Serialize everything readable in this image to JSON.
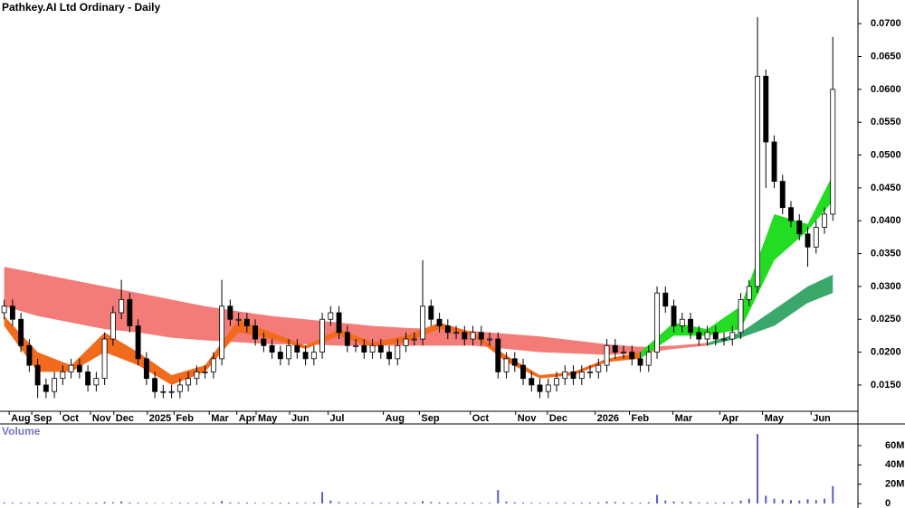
{
  "chart_data": {
    "type": "candlestick",
    "title": "Pathkey.AI Ltd Ordinary - Daily",
    "volume_label": "Volume",
    "xlim": [
      -0.5,
      102
    ],
    "ylim": [
      0.011,
      0.0736
    ],
    "yticks": [
      {
        "value": 0.015,
        "label": "0.0150"
      },
      {
        "value": 0.02,
        "label": "0.0200"
      },
      {
        "value": 0.025,
        "label": "0.0250"
      },
      {
        "value": 0.03,
        "label": "0.0300"
      },
      {
        "value": 0.035,
        "label": "0.0350"
      },
      {
        "value": 0.04,
        "label": "0.0400"
      },
      {
        "value": 0.045,
        "label": "0.0450"
      },
      {
        "value": 0.05,
        "label": "0.0500"
      },
      {
        "value": 0.055,
        "label": "0.0550"
      },
      {
        "value": 0.06,
        "label": "0.0600"
      },
      {
        "value": 0.065,
        "label": "0.0650"
      },
      {
        "value": 0.07,
        "label": "0.0700"
      }
    ],
    "xticks": [
      {
        "value": 0.6,
        "label": "Aug"
      },
      {
        "value": 3.3,
        "label": "Sep"
      },
      {
        "value": 6.7,
        "label": "Oct"
      },
      {
        "value": 10.3,
        "label": "Nov"
      },
      {
        "value": 13.1,
        "label": "Dec"
      },
      {
        "value": 17.1,
        "label": "2025"
      },
      {
        "value": 20.3,
        "label": "Feb"
      },
      {
        "value": 24.5,
        "label": "Mar"
      },
      {
        "value": 27.8,
        "label": "Apr"
      },
      {
        "value": 30.1,
        "label": "May"
      },
      {
        "value": 34.1,
        "label": "Jun"
      },
      {
        "value": 38.7,
        "label": "Jul"
      },
      {
        "value": 45.3,
        "label": "Aug"
      },
      {
        "value": 49.6,
        "label": "Sep"
      },
      {
        "value": 55.7,
        "label": "Oct"
      },
      {
        "value": 61.1,
        "label": "Nov"
      },
      {
        "value": 64.9,
        "label": "Dec"
      },
      {
        "value": 70.6,
        "label": "2026"
      },
      {
        "value": 74.7,
        "label": "Feb"
      },
      {
        "value": 79.9,
        "label": "Mar"
      },
      {
        "value": 85.5,
        "label": "Apr"
      },
      {
        "value": 90.6,
        "label": "May"
      },
      {
        "value": 96.4,
        "label": "Jun"
      }
    ],
    "x": [
      0,
      1,
      2,
      3,
      4,
      5,
      6,
      7,
      8,
      9,
      10,
      11,
      12,
      13,
      14,
      15,
      16,
      17,
      18,
      19,
      20,
      21,
      22,
      23,
      24,
      25,
      26,
      27,
      28,
      29,
      30,
      31,
      32,
      33,
      34,
      35,
      36,
      37,
      38,
      39,
      40,
      41,
      42,
      43,
      44,
      45,
      46,
      47,
      48,
      49,
      50,
      51,
      52,
      53,
      54,
      55,
      56,
      57,
      58,
      59,
      60,
      61,
      62,
      63,
      64,
      65,
      66,
      67,
      68,
      69,
      70,
      71,
      72,
      73,
      74,
      75,
      76,
      77,
      78,
      79,
      80,
      81,
      82,
      83,
      84,
      85,
      86,
      87,
      88,
      89,
      90,
      91,
      92,
      93,
      94,
      95,
      96,
      97,
      98,
      99
    ],
    "open": [
      0.026,
      0.027,
      0.025,
      0.021,
      0.018,
      0.015,
      0.014,
      0.016,
      0.017,
      0.018,
      0.017,
      0.015,
      0.016,
      0.022,
      0.026,
      0.028,
      0.024,
      0.019,
      0.016,
      0.014,
      0.014,
      0.014,
      0.015,
      0.016,
      0.017,
      0.017,
      0.019,
      0.027,
      0.025,
      0.025,
      0.024,
      0.022,
      0.021,
      0.02,
      0.019,
      0.021,
      0.02,
      0.019,
      0.02,
      0.025,
      0.026,
      0.023,
      0.021,
      0.021,
      0.02,
      0.021,
      0.02,
      0.019,
      0.021,
      0.022,
      0.022,
      0.027,
      0.025,
      0.024,
      0.023,
      0.023,
      0.022,
      0.023,
      0.022,
      0.022,
      0.017,
      0.019,
      0.018,
      0.016,
      0.015,
      0.014,
      0.015,
      0.016,
      0.017,
      0.016,
      0.017,
      0.017,
      0.018,
      0.021,
      0.02,
      0.02,
      0.019,
      0.018,
      0.02,
      0.029,
      0.027,
      0.024,
      0.025,
      0.023,
      0.022,
      0.023,
      0.022,
      0.022,
      0.023,
      0.028,
      0.03,
      0.062,
      0.052,
      0.046,
      0.042,
      0.04,
      0.038,
      0.036,
      0.039,
      0.041
    ],
    "high": [
      0.028,
      0.028,
      0.026,
      0.022,
      0.019,
      0.016,
      0.017,
      0.018,
      0.019,
      0.019,
      0.018,
      0.017,
      0.023,
      0.027,
      0.031,
      0.029,
      0.025,
      0.02,
      0.017,
      0.015,
      0.015,
      0.016,
      0.017,
      0.018,
      0.018,
      0.02,
      0.031,
      0.028,
      0.026,
      0.026,
      0.025,
      0.023,
      0.022,
      0.021,
      0.022,
      0.022,
      0.021,
      0.021,
      0.026,
      0.027,
      0.027,
      0.024,
      0.022,
      0.022,
      0.022,
      0.022,
      0.021,
      0.022,
      0.023,
      0.023,
      0.034,
      0.028,
      0.026,
      0.025,
      0.024,
      0.024,
      0.024,
      0.024,
      0.023,
      0.023,
      0.02,
      0.02,
      0.019,
      0.017,
      0.016,
      0.016,
      0.017,
      0.018,
      0.018,
      0.018,
      0.018,
      0.019,
      0.022,
      0.022,
      0.021,
      0.021,
      0.02,
      0.021,
      0.03,
      0.03,
      0.028,
      0.026,
      0.026,
      0.024,
      0.024,
      0.024,
      0.023,
      0.024,
      0.029,
      0.031,
      0.071,
      0.063,
      0.053,
      0.047,
      0.043,
      0.041,
      0.039,
      0.04,
      0.042,
      0.068
    ],
    "low": [
      0.025,
      0.024,
      0.02,
      0.017,
      0.013,
      0.013,
      0.013,
      0.015,
      0.016,
      0.016,
      0.014,
      0.014,
      0.015,
      0.021,
      0.025,
      0.023,
      0.018,
      0.015,
      0.013,
      0.013,
      0.013,
      0.013,
      0.014,
      0.015,
      0.016,
      0.016,
      0.018,
      0.024,
      0.024,
      0.023,
      0.021,
      0.02,
      0.019,
      0.018,
      0.018,
      0.019,
      0.018,
      0.018,
      0.019,
      0.024,
      0.022,
      0.02,
      0.02,
      0.019,
      0.019,
      0.019,
      0.018,
      0.018,
      0.02,
      0.021,
      0.021,
      0.024,
      0.023,
      0.022,
      0.022,
      0.021,
      0.021,
      0.021,
      0.021,
      0.016,
      0.016,
      0.017,
      0.015,
      0.014,
      0.013,
      0.013,
      0.014,
      0.015,
      0.015,
      0.015,
      0.016,
      0.016,
      0.017,
      0.019,
      0.019,
      0.018,
      0.017,
      0.017,
      0.019,
      0.026,
      0.023,
      0.023,
      0.022,
      0.021,
      0.021,
      0.021,
      0.021,
      0.021,
      0.022,
      0.027,
      0.029,
      0.045,
      0.045,
      0.041,
      0.039,
      0.037,
      0.033,
      0.035,
      0.038,
      0.04
    ],
    "close": [
      0.027,
      0.025,
      0.021,
      0.018,
      0.015,
      0.014,
      0.016,
      0.017,
      0.018,
      0.017,
      0.015,
      0.016,
      0.022,
      0.026,
      0.028,
      0.024,
      0.019,
      0.016,
      0.014,
      0.014,
      0.014,
      0.015,
      0.016,
      0.017,
      0.017,
      0.019,
      0.027,
      0.025,
      0.025,
      0.024,
      0.022,
      0.021,
      0.02,
      0.019,
      0.021,
      0.02,
      0.019,
      0.02,
      0.025,
      0.026,
      0.023,
      0.021,
      0.021,
      0.02,
      0.021,
      0.02,
      0.019,
      0.021,
      0.022,
      0.022,
      0.027,
      0.025,
      0.024,
      0.023,
      0.023,
      0.022,
      0.023,
      0.022,
      0.022,
      0.017,
      0.019,
      0.018,
      0.016,
      0.015,
      0.014,
      0.015,
      0.016,
      0.017,
      0.016,
      0.017,
      0.017,
      0.018,
      0.021,
      0.02,
      0.02,
      0.019,
      0.018,
      0.02,
      0.029,
      0.027,
      0.024,
      0.025,
      0.023,
      0.022,
      0.023,
      0.022,
      0.022,
      0.023,
      0.028,
      0.03,
      0.062,
      0.052,
      0.046,
      0.042,
      0.04,
      0.038,
      0.036,
      0.039,
      0.041,
      0.06
    ],
    "up_color": "#ffffff",
    "down_color": "#000000",
    "volume": [
      1200000,
      1000000,
      900000,
      800000,
      1100000,
      700000,
      900000,
      800000,
      1000000,
      700000,
      800000,
      900000,
      1500000,
      1300000,
      2000000,
      1100000,
      900000,
      700000,
      600000,
      500000,
      600000,
      800000,
      700000,
      900000,
      800000,
      1000000,
      2500000,
      1200000,
      900000,
      1000000,
      800000,
      700000,
      900000,
      800000,
      1000000,
      900000,
      800000,
      1100000,
      12000000,
      3000000,
      1500000,
      1000000,
      900000,
      800000,
      1000000,
      900000,
      800000,
      1100000,
      1200000,
      1000000,
      2500000,
      1500000,
      1200000,
      1000000,
      900000,
      800000,
      1000000,
      900000,
      800000,
      14000000,
      2000000,
      1200000,
      1000000,
      900000,
      800000,
      900000,
      1000000,
      1100000,
      900000,
      1000000,
      900000,
      1200000,
      2000000,
      1500000,
      1200000,
      1000000,
      900000,
      1300000,
      9000000,
      3000000,
      2000000,
      1500000,
      1800000,
      1200000,
      1100000,
      1000000,
      1200000,
      1400000,
      3000000,
      5000000,
      72000000,
      8000000,
      5000000,
      4000000,
      3500000,
      3000000,
      4500000,
      3500000,
      5000000,
      18000000
    ],
    "volume_color": "#5c5cc8",
    "vylim": [
      0,
      75000000
    ],
    "vyticks": [
      0,
      {
        "value": 20000000,
        "label": "20M"
      },
      {
        "value": 40000000,
        "label": "40M"
      },
      {
        "value": 60000000,
        "label": "60M"
      }
    ],
    "bands": [
      {
        "color": "#f47c78",
        "x": [
          0,
          4,
          8,
          12,
          16,
          20,
          24,
          28,
          32,
          36,
          40,
          44,
          48,
          52,
          56,
          60,
          64,
          68,
          72,
          76,
          80,
          84
        ],
        "upper": [
          0.033,
          0.032,
          0.031,
          0.03,
          0.029,
          0.028,
          0.027,
          0.0262,
          0.0255,
          0.025,
          0.0245,
          0.024,
          0.0237,
          0.0235,
          0.0232,
          0.0228,
          0.0224,
          0.0218,
          0.0212,
          0.0208,
          0.021,
          0.0214
        ],
        "lower": [
          0.027,
          0.0255,
          0.0245,
          0.0235,
          0.023,
          0.0222,
          0.0218,
          0.0215,
          0.0212,
          0.0212,
          0.021,
          0.021,
          0.021,
          0.021,
          0.021,
          0.0205,
          0.02,
          0.0198,
          0.0196,
          0.0198,
          0.0205,
          0.021
        ]
      },
      {
        "color": "#3aa86b",
        "x": [
          84,
          88,
          92,
          96,
          99
        ],
        "upper": [
          0.0214,
          0.023,
          0.0265,
          0.03,
          0.0318
        ],
        "lower": [
          0.021,
          0.0222,
          0.024,
          0.0275,
          0.029
        ]
      },
      {
        "color": "#f26b1d",
        "x": [
          0,
          4,
          8,
          12,
          16,
          20,
          24,
          28,
          32,
          36,
          40,
          44,
          48,
          52,
          56,
          60,
          64,
          68,
          72,
          76
        ],
        "upper": [
          0.0255,
          0.02,
          0.018,
          0.023,
          0.02,
          0.0165,
          0.018,
          0.025,
          0.023,
          0.021,
          0.0235,
          0.0215,
          0.0225,
          0.0245,
          0.023,
          0.0195,
          0.0165,
          0.017,
          0.019,
          0.02
        ],
        "lower": [
          0.024,
          0.017,
          0.017,
          0.02,
          0.018,
          0.015,
          0.017,
          0.023,
          0.022,
          0.0205,
          0.0225,
          0.0208,
          0.0215,
          0.0235,
          0.0225,
          0.0185,
          0.016,
          0.0165,
          0.0185,
          0.019
        ]
      },
      {
        "color": "#22dd22",
        "x": [
          76,
          80,
          84,
          88,
          92,
          96,
          99
        ],
        "upper": [
          0.02,
          0.0245,
          0.0235,
          0.027,
          0.041,
          0.0395,
          0.047
        ],
        "lower": [
          0.019,
          0.0225,
          0.0225,
          0.0235,
          0.034,
          0.0385,
          0.043
        ]
      }
    ]
  }
}
